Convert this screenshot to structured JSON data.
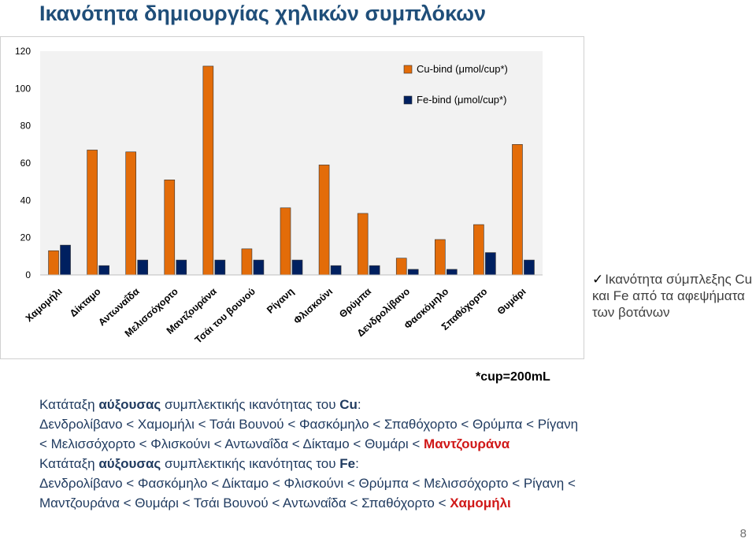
{
  "slide": {
    "title": "Ικανότητα δημιουργίας χηλικών συμπλόκων",
    "page_number": "8",
    "cup_note": "*cup=200mL",
    "side_note": {
      "check_icon": "check-icon",
      "text": "Ικανότητα σύμπλεξης Cu και Fe από τα αφεψήματα των βοτάνων"
    },
    "ranking_cu": {
      "prefix": "Κατάταξη ",
      "bold_word": "αύξουσας",
      "suffix": " συμπλεκτικής ικανότητας του ",
      "element": "Cu",
      "colon": ":",
      "line1": "Δενδρολίβανο < Χαμομήλι < Τσάι Βουνού < Φασκόμηλο < Σπαθόχορτο < Θρύμπα < Ρίγανη",
      "line2": "< Μελισσόχορτο < Φλισκούνι < Αντωναΐδα < Δίκταμο < Θυμάρι < ",
      "highlight": "Μαντζουράνα"
    },
    "ranking_fe": {
      "prefix": "Κατάταξη ",
      "bold_word": "αύξουσας",
      "suffix": " συμπλεκτικής ικανότητας του ",
      "element": "Fe",
      "colon": ":",
      "line1": "Δενδρολίβανο < Φασκόμηλο < Δίκταμο < Φλισκούνι < Θρύμπα < Μελισσόχορτο < Ρίγανη <",
      "line2": "Μαντζουράνα < Θυμάρι < Τσάι Βουνού < Αντωναΐδα < Σπαθόχορτο < ",
      "highlight": "Χαμομήλι"
    }
  },
  "chart_data": {
    "type": "bar",
    "categories": [
      "Χαμομήλι",
      "Δίκταμο",
      "Αντωναΐδα",
      "Μελισσόχορτο",
      "Μαντζουράνα",
      "Τσάι του βουνού",
      "Ρίγανη",
      "Φλισκούνι",
      "Θρύμπα",
      "Δενδρολίβανο",
      "Φασκόμηλο",
      "Σπαθόχορτο",
      "Θυμάρι"
    ],
    "series": [
      {
        "name": "Cu-bind (μmol/cup*)",
        "color": "#e36c09",
        "values": [
          13,
          67,
          66,
          51,
          112,
          14,
          36,
          59,
          33,
          9,
          19,
          27,
          70
        ]
      },
      {
        "name": "Fe-bind (μmol/cup*)",
        "color": "#002060",
        "values": [
          16,
          5,
          8,
          8,
          8,
          8,
          8,
          5,
          5,
          3,
          3,
          12,
          8
        ]
      }
    ],
    "ylim": [
      0,
      120
    ],
    "yticks": [
      "0",
      "20",
      "40",
      "60",
      "80",
      "100",
      "120"
    ],
    "grid": false,
    "legend": "top-right",
    "plot_background": "#f2f2f2"
  }
}
